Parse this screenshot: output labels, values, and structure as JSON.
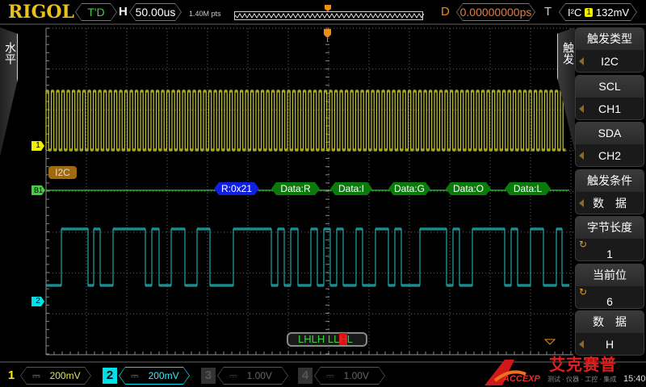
{
  "header": {
    "brand": "RIGOL",
    "run_status": "T'D",
    "h_label": "H",
    "timebase": "50.00us",
    "memory_depth": "1.40M pts",
    "d_label": "D",
    "delay": "0.00000000ps",
    "t_label": "T",
    "trigger_type": "I²C",
    "trigger_source": "1",
    "trigger_level": "132mV"
  },
  "left_tab": {
    "label": "水平"
  },
  "right_tab": {
    "label": "触发"
  },
  "menu": [
    {
      "title": "触发类型",
      "value": "I2C",
      "control": "arrow"
    },
    {
      "title": "SCL",
      "value": "CH1",
      "control": "arrow"
    },
    {
      "title": "SDA",
      "value": "CH2",
      "control": "arrow"
    },
    {
      "title": "触发条件",
      "value": "数　据",
      "control": "arrow"
    },
    {
      "title": "字节长度",
      "value": "1",
      "control": "knob"
    },
    {
      "title": "当前位",
      "value": "6",
      "control": "knob"
    },
    {
      "title": "数　据",
      "value": "H",
      "control": "arrow"
    }
  ],
  "markers": {
    "ch1": "1",
    "bus": "B1",
    "ch2": "2",
    "bus_label": "I2C"
  },
  "decode": [
    {
      "text": "R:0x21",
      "type": "address"
    },
    {
      "text": "Data:R",
      "type": "data"
    },
    {
      "text": "Data:I",
      "type": "data"
    },
    {
      "text": "Data:G",
      "type": "data"
    },
    {
      "text": "Data:O",
      "type": "data"
    },
    {
      "text": "Data:L",
      "type": "data"
    }
  ],
  "bit_pattern": {
    "before": "LHLH LL",
    "current": "H",
    "after": "L"
  },
  "channels": [
    {
      "num": "1",
      "coupling": "⎓",
      "scale": "200mV",
      "color": "#f0f000",
      "active": false
    },
    {
      "num": "2",
      "coupling": "⎓",
      "scale": "200mV",
      "color": "#00e0e8",
      "active": true
    },
    {
      "num": "3",
      "coupling": "⎓",
      "scale": "1.00V",
      "color": "#555555",
      "active": false
    },
    {
      "num": "4",
      "coupling": "⎓",
      "scale": "1.00V",
      "color": "#555555",
      "active": false
    }
  ],
  "status": {
    "time": "15:40"
  },
  "watermark": {
    "cn": "艾克赛普",
    "en": "ACCEXP",
    "tagline": "测试 · 仪器 · 工控 · 集成"
  },
  "colors": {
    "ch1": "#c8c832",
    "ch2": "#20a8a8",
    "bus": "#40d040",
    "decode_data": "#0a7a0a",
    "decode_addr": "#1020e0",
    "trigger": "#f08a1a"
  }
}
